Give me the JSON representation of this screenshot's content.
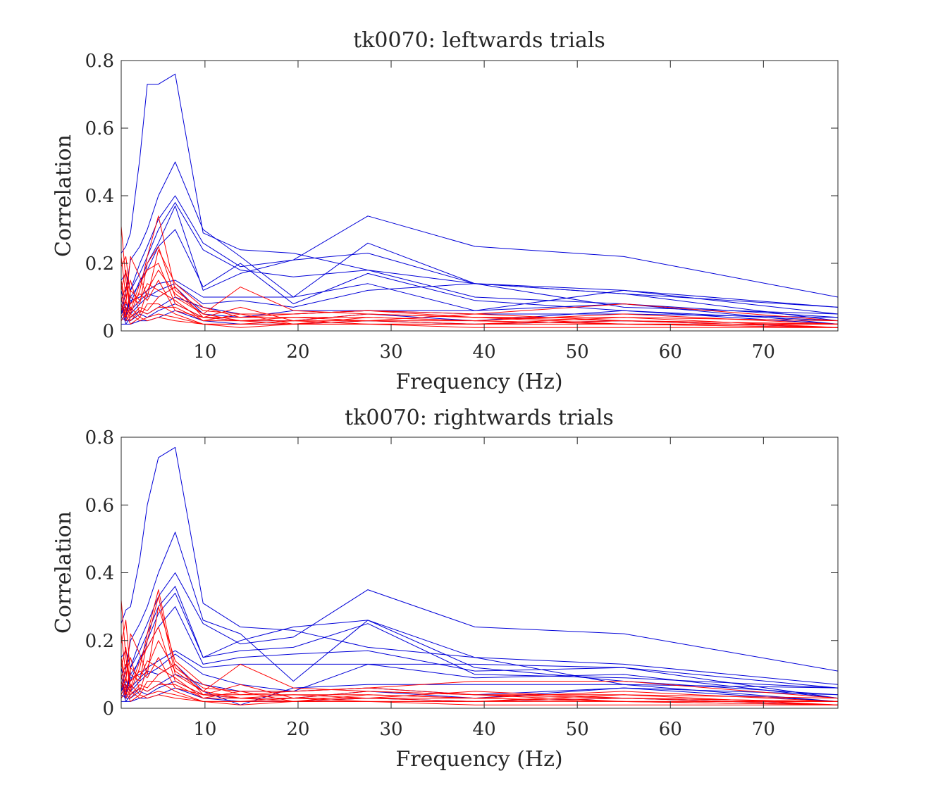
{
  "colors": {
    "series_a": "#0000d8",
    "series_b": "#ff0000",
    "axes": "#262626"
  },
  "chart_data": [
    {
      "type": "line",
      "title": "tk0070: leftwards trials",
      "xlabel": "Frequency (Hz)",
      "ylabel": "Correlation",
      "xlim": [
        1,
        78
      ],
      "ylim": [
        0,
        0.8
      ],
      "xticks": [
        10,
        20,
        30,
        40,
        50,
        60,
        70
      ],
      "yticks": [
        0,
        0.2,
        0.4,
        0.6,
        0.8
      ],
      "ytick_labels": [
        "0",
        "0.2",
        "0.4",
        "0.6",
        "0.8"
      ],
      "grid": false,
      "x": [
        1,
        1.5,
        2,
        3,
        3.8,
        5,
        6.8,
        9.8,
        13.8,
        19.5,
        27.5,
        39,
        55,
        78
      ],
      "series": [
        {
          "color": "blue",
          "values": [
            0.23,
            0.25,
            0.29,
            0.51,
            0.73,
            0.73,
            0.76,
            0.29,
            0.24,
            0.23,
            0.18,
            0.14,
            0.12,
            0.07
          ]
        },
        {
          "color": "blue",
          "values": [
            0.05,
            0.12,
            0.21,
            0.25,
            0.3,
            0.4,
            0.5,
            0.3,
            0.22,
            0.1,
            0.26,
            0.14,
            0.07,
            0.05
          ]
        },
        {
          "color": "blue",
          "values": [
            0.15,
            0.17,
            0.12,
            0.2,
            0.25,
            0.33,
            0.4,
            0.26,
            0.19,
            0.21,
            0.34,
            0.25,
            0.22,
            0.1
          ]
        },
        {
          "color": "blue",
          "values": [
            0.1,
            0.03,
            0.12,
            0.17,
            0.22,
            0.3,
            0.38,
            0.24,
            0.18,
            0.16,
            0.18,
            0.1,
            0.08,
            0.04
          ]
        },
        {
          "color": "blue",
          "values": [
            0.08,
            0.04,
            0.1,
            0.14,
            0.2,
            0.26,
            0.37,
            0.12,
            0.17,
            0.21,
            0.23,
            0.14,
            0.11,
            0.07
          ]
        },
        {
          "color": "blue",
          "values": [
            0.12,
            0.06,
            0.08,
            0.15,
            0.18,
            0.25,
            0.3,
            0.13,
            0.2,
            0.08,
            0.17,
            0.09,
            0.06,
            0.03
          ]
        },
        {
          "color": "blue",
          "values": [
            0.03,
            0.05,
            0.09,
            0.1,
            0.12,
            0.14,
            0.15,
            0.1,
            0.1,
            0.1,
            0.14,
            0.06,
            0.12,
            0.05
          ]
        },
        {
          "color": "blue",
          "values": [
            0.09,
            0.07,
            0.05,
            0.08,
            0.1,
            0.12,
            0.14,
            0.08,
            0.09,
            0.07,
            0.12,
            0.14,
            0.11,
            0.03
          ]
        },
        {
          "color": "blue",
          "values": [
            0.05,
            0.08,
            0.06,
            0.09,
            0.11,
            0.1,
            0.13,
            0.05,
            0.04,
            0.06,
            0.06,
            0.06,
            0.08,
            0.02
          ]
        },
        {
          "color": "blue",
          "values": [
            0.07,
            0.02,
            0.04,
            0.06,
            0.05,
            0.07,
            0.1,
            0.07,
            0.05,
            0.05,
            0.06,
            0.05,
            0.05,
            0.04
          ]
        },
        {
          "color": "blue",
          "values": [
            0.04,
            0.03,
            0.03,
            0.05,
            0.04,
            0.06,
            0.08,
            0.04,
            0.03,
            0.03,
            0.05,
            0.03,
            0.06,
            0.02
          ]
        },
        {
          "color": "blue",
          "values": [
            0.02,
            0.02,
            0.02,
            0.03,
            0.03,
            0.04,
            0.06,
            0.03,
            0.02,
            0.02,
            0.03,
            0.02,
            0.03,
            0.01
          ]
        },
        {
          "color": "red",
          "values": [
            0.31,
            0.15,
            0.05,
            0.12,
            0.22,
            0.34,
            0.12,
            0.06,
            0.05,
            0.05,
            0.06,
            0.05,
            0.08,
            0.03
          ]
        },
        {
          "color": "red",
          "values": [
            0.19,
            0.22,
            0.1,
            0.08,
            0.2,
            0.25,
            0.1,
            0.05,
            0.13,
            0.06,
            0.05,
            0.04,
            0.03,
            0.02
          ]
        },
        {
          "color": "red",
          "values": [
            0.15,
            0.08,
            0.22,
            0.16,
            0.1,
            0.24,
            0.14,
            0.07,
            0.04,
            0.04,
            0.04,
            0.03,
            0.05,
            0.02
          ]
        },
        {
          "color": "red",
          "values": [
            0.12,
            0.18,
            0.06,
            0.14,
            0.18,
            0.2,
            0.08,
            0.04,
            0.07,
            0.03,
            0.05,
            0.04,
            0.02,
            0.02
          ]
        },
        {
          "color": "red",
          "values": [
            0.22,
            0.1,
            0.15,
            0.05,
            0.12,
            0.18,
            0.11,
            0.05,
            0.03,
            0.03,
            0.03,
            0.02,
            0.03,
            0.01
          ]
        },
        {
          "color": "red",
          "values": [
            0.09,
            0.13,
            0.08,
            0.11,
            0.09,
            0.15,
            0.06,
            0.04,
            0.04,
            0.05,
            0.06,
            0.04,
            0.04,
            0.03
          ]
        },
        {
          "color": "red",
          "values": [
            0.14,
            0.05,
            0.12,
            0.09,
            0.14,
            0.12,
            0.09,
            0.03,
            0.05,
            0.02,
            0.04,
            0.03,
            0.02,
            0.02
          ]
        },
        {
          "color": "red",
          "values": [
            0.06,
            0.09,
            0.04,
            0.07,
            0.06,
            0.1,
            0.13,
            0.04,
            0.03,
            0.04,
            0.03,
            0.05,
            0.03,
            0.02
          ]
        },
        {
          "color": "red",
          "values": [
            0.1,
            0.04,
            0.07,
            0.04,
            0.08,
            0.08,
            0.05,
            0.02,
            0.02,
            0.03,
            0.02,
            0.02,
            0.04,
            0.01
          ]
        },
        {
          "color": "red",
          "values": [
            0.04,
            0.07,
            0.03,
            0.06,
            0.05,
            0.07,
            0.07,
            0.03,
            0.03,
            0.02,
            0.03,
            0.03,
            0.02,
            0.01
          ]
        },
        {
          "color": "red",
          "values": [
            0.08,
            0.03,
            0.05,
            0.03,
            0.04,
            0.05,
            0.04,
            0.02,
            0.02,
            0.02,
            0.02,
            0.02,
            0.02,
            0.01
          ]
        },
        {
          "color": "red",
          "values": [
            0.03,
            0.05,
            0.02,
            0.04,
            0.03,
            0.04,
            0.03,
            0.02,
            0.01,
            0.02,
            0.02,
            0.01,
            0.01,
            0.01
          ]
        }
      ]
    },
    {
      "type": "line",
      "title": "tk0070: rightwards trials",
      "xlabel": "Frequency (Hz)",
      "ylabel": "Correlation",
      "xlim": [
        1,
        78
      ],
      "ylim": [
        0,
        0.8
      ],
      "xticks": [
        10,
        20,
        30,
        40,
        50,
        60,
        70
      ],
      "yticks": [
        0,
        0.2,
        0.4,
        0.6,
        0.8
      ],
      "ytick_labels": [
        "0",
        "0.2",
        "0.4",
        "0.6",
        "0.8"
      ],
      "grid": false,
      "x": [
        1,
        1.5,
        2,
        3,
        3.8,
        5,
        6.8,
        9.8,
        13.8,
        19.5,
        27.5,
        39,
        55,
        78
      ],
      "series": [
        {
          "color": "blue",
          "values": [
            0.25,
            0.29,
            0.3,
            0.44,
            0.6,
            0.74,
            0.77,
            0.31,
            0.24,
            0.23,
            0.18,
            0.15,
            0.13,
            0.07
          ]
        },
        {
          "color": "blue",
          "values": [
            0.05,
            0.12,
            0.2,
            0.25,
            0.3,
            0.4,
            0.52,
            0.26,
            0.22,
            0.08,
            0.26,
            0.15,
            0.07,
            0.06
          ]
        },
        {
          "color": "blue",
          "values": [
            0.15,
            0.17,
            0.12,
            0.2,
            0.25,
            0.33,
            0.4,
            0.25,
            0.19,
            0.21,
            0.35,
            0.24,
            0.22,
            0.11
          ]
        },
        {
          "color": "blue",
          "values": [
            0.1,
            0.03,
            0.12,
            0.17,
            0.22,
            0.3,
            0.36,
            0.15,
            0.2,
            0.24,
            0.26,
            0.12,
            0.08,
            0.04
          ]
        },
        {
          "color": "blue",
          "values": [
            0.08,
            0.04,
            0.1,
            0.14,
            0.2,
            0.28,
            0.34,
            0.15,
            0.17,
            0.18,
            0.25,
            0.1,
            0.09,
            0.06
          ]
        },
        {
          "color": "blue",
          "values": [
            0.12,
            0.06,
            0.08,
            0.15,
            0.18,
            0.24,
            0.3,
            0.13,
            0.15,
            0.16,
            0.17,
            0.11,
            0.12,
            0.03
          ]
        },
        {
          "color": "blue",
          "values": [
            0.03,
            0.05,
            0.09,
            0.1,
            0.12,
            0.14,
            0.17,
            0.12,
            0.13,
            0.13,
            0.13,
            0.13,
            0.12,
            0.06
          ]
        },
        {
          "color": "blue",
          "values": [
            0.09,
            0.07,
            0.05,
            0.08,
            0.1,
            0.12,
            0.16,
            0.1,
            0.07,
            0.05,
            0.13,
            0.09,
            0.1,
            0.03
          ]
        },
        {
          "color": "blue",
          "values": [
            0.05,
            0.08,
            0.06,
            0.09,
            0.11,
            0.1,
            0.13,
            0.05,
            0.01,
            0.06,
            0.07,
            0.07,
            0.07,
            0.02
          ]
        },
        {
          "color": "blue",
          "values": [
            0.07,
            0.02,
            0.04,
            0.06,
            0.05,
            0.07,
            0.1,
            0.07,
            0.05,
            0.05,
            0.06,
            0.04,
            0.06,
            0.04
          ]
        },
        {
          "color": "blue",
          "values": [
            0.04,
            0.03,
            0.03,
            0.05,
            0.04,
            0.06,
            0.08,
            0.04,
            0.03,
            0.03,
            0.05,
            0.03,
            0.06,
            0.02
          ]
        },
        {
          "color": "blue",
          "values": [
            0.02,
            0.02,
            0.02,
            0.03,
            0.03,
            0.04,
            0.06,
            0.03,
            0.02,
            0.02,
            0.03,
            0.02,
            0.03,
            0.01
          ]
        },
        {
          "color": "red",
          "values": [
            0.32,
            0.15,
            0.05,
            0.12,
            0.22,
            0.35,
            0.12,
            0.06,
            0.05,
            0.05,
            0.06,
            0.08,
            0.08,
            0.03
          ]
        },
        {
          "color": "red",
          "values": [
            0.19,
            0.26,
            0.1,
            0.08,
            0.2,
            0.33,
            0.1,
            0.05,
            0.13,
            0.06,
            0.05,
            0.04,
            0.03,
            0.02
          ]
        },
        {
          "color": "red",
          "values": [
            0.15,
            0.08,
            0.22,
            0.16,
            0.1,
            0.3,
            0.14,
            0.07,
            0.04,
            0.04,
            0.04,
            0.03,
            0.05,
            0.02
          ]
        },
        {
          "color": "red",
          "values": [
            0.12,
            0.18,
            0.06,
            0.14,
            0.18,
            0.24,
            0.08,
            0.04,
            0.07,
            0.03,
            0.05,
            0.04,
            0.02,
            0.02
          ]
        },
        {
          "color": "red",
          "values": [
            0.22,
            0.1,
            0.15,
            0.05,
            0.12,
            0.2,
            0.11,
            0.05,
            0.03,
            0.03,
            0.03,
            0.02,
            0.03,
            0.01
          ]
        },
        {
          "color": "red",
          "values": [
            0.09,
            0.13,
            0.08,
            0.11,
            0.09,
            0.15,
            0.06,
            0.04,
            0.04,
            0.05,
            0.06,
            0.04,
            0.04,
            0.03
          ]
        },
        {
          "color": "red",
          "values": [
            0.14,
            0.05,
            0.12,
            0.09,
            0.14,
            0.12,
            0.09,
            0.03,
            0.05,
            0.02,
            0.04,
            0.03,
            0.02,
            0.02
          ]
        },
        {
          "color": "red",
          "values": [
            0.06,
            0.09,
            0.04,
            0.07,
            0.06,
            0.1,
            0.13,
            0.04,
            0.03,
            0.04,
            0.03,
            0.05,
            0.03,
            0.02
          ]
        },
        {
          "color": "red",
          "values": [
            0.1,
            0.04,
            0.07,
            0.04,
            0.08,
            0.08,
            0.05,
            0.02,
            0.02,
            0.03,
            0.02,
            0.02,
            0.04,
            0.01
          ]
        },
        {
          "color": "red",
          "values": [
            0.04,
            0.07,
            0.03,
            0.06,
            0.05,
            0.07,
            0.07,
            0.03,
            0.03,
            0.02,
            0.03,
            0.03,
            0.02,
            0.01
          ]
        },
        {
          "color": "red",
          "values": [
            0.08,
            0.03,
            0.05,
            0.03,
            0.04,
            0.05,
            0.04,
            0.02,
            0.02,
            0.02,
            0.02,
            0.02,
            0.02,
            0.01
          ]
        },
        {
          "color": "red",
          "values": [
            0.03,
            0.05,
            0.02,
            0.04,
            0.03,
            0.04,
            0.03,
            0.02,
            0.01,
            0.02,
            0.02,
            0.01,
            0.01,
            0.01
          ]
        }
      ]
    }
  ]
}
